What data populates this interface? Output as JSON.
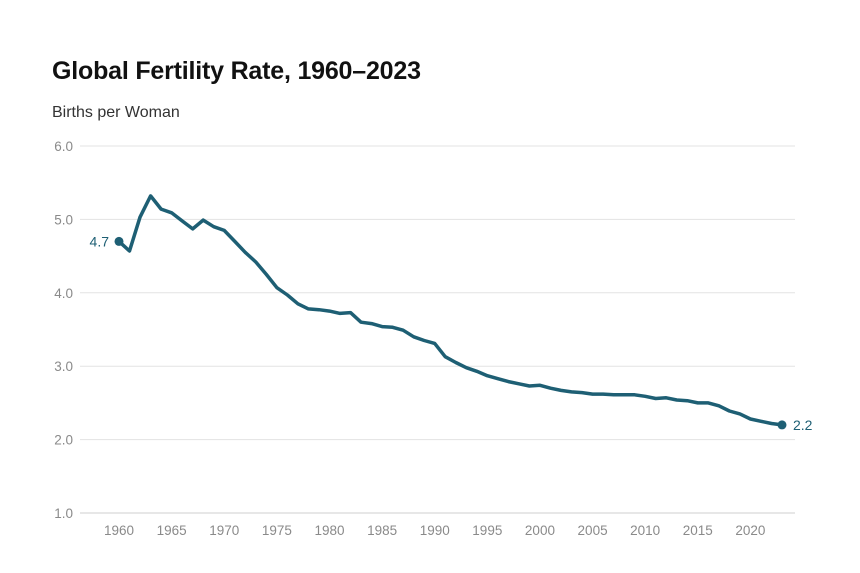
{
  "chart_data": {
    "type": "line",
    "title": "Global Fertility Rate, 1960–2023",
    "subtitle": "Births per Woman",
    "xlabel": "",
    "ylabel": "",
    "ylim": [
      1.0,
      6.0
    ],
    "xlim": [
      1960,
      2023
    ],
    "grid": true,
    "line_color": "#1e5f74",
    "yticks": [
      {
        "value": 1.0,
        "label": "1.0"
      },
      {
        "value": 2.0,
        "label": "2.0"
      },
      {
        "value": 3.0,
        "label": "3.0"
      },
      {
        "value": 4.0,
        "label": "4.0"
      },
      {
        "value": 5.0,
        "label": "5.0"
      },
      {
        "value": 6.0,
        "label": "6.0"
      }
    ],
    "xticks": [
      {
        "value": 1960,
        "label": "1960"
      },
      {
        "value": 1965,
        "label": "1965"
      },
      {
        "value": 1970,
        "label": "1970"
      },
      {
        "value": 1975,
        "label": "1975"
      },
      {
        "value": 1980,
        "label": "1980"
      },
      {
        "value": 1985,
        "label": "1985"
      },
      {
        "value": 1990,
        "label": "1990"
      },
      {
        "value": 1995,
        "label": "1995"
      },
      {
        "value": 2000,
        "label": "2000"
      },
      {
        "value": 2005,
        "label": "2005"
      },
      {
        "value": 2010,
        "label": "2010"
      },
      {
        "value": 2015,
        "label": "2015"
      },
      {
        "value": 2020,
        "label": "2020"
      }
    ],
    "series": [
      {
        "name": "Global Fertility Rate",
        "x": [
          1960,
          1961,
          1962,
          1963,
          1964,
          1965,
          1966,
          1967,
          1968,
          1969,
          1970,
          1971,
          1972,
          1973,
          1974,
          1975,
          1976,
          1977,
          1978,
          1979,
          1980,
          1981,
          1982,
          1983,
          1984,
          1985,
          1986,
          1987,
          1988,
          1989,
          1990,
          1991,
          1992,
          1993,
          1994,
          1995,
          1996,
          1997,
          1998,
          1999,
          2000,
          2001,
          2002,
          2003,
          2004,
          2005,
          2006,
          2007,
          2008,
          2009,
          2010,
          2011,
          2012,
          2013,
          2014,
          2015,
          2016,
          2017,
          2018,
          2019,
          2020,
          2021,
          2022,
          2023
        ],
        "values": [
          4.7,
          4.57,
          5.03,
          5.32,
          5.14,
          5.09,
          4.98,
          4.87,
          4.99,
          4.9,
          4.85,
          4.7,
          4.55,
          4.42,
          4.25,
          4.07,
          3.97,
          3.85,
          3.78,
          3.77,
          3.75,
          3.72,
          3.73,
          3.6,
          3.58,
          3.54,
          3.53,
          3.49,
          3.4,
          3.35,
          3.31,
          3.13,
          3.05,
          2.98,
          2.93,
          2.87,
          2.83,
          2.79,
          2.76,
          2.73,
          2.74,
          2.7,
          2.67,
          2.65,
          2.64,
          2.62,
          2.62,
          2.61,
          2.61,
          2.61,
          2.59,
          2.56,
          2.57,
          2.54,
          2.53,
          2.5,
          2.5,
          2.46,
          2.39,
          2.35,
          2.28,
          2.25,
          2.22,
          2.2
        ]
      }
    ],
    "annotations": [
      {
        "year": 1960,
        "value": 4.7,
        "label": "4.7",
        "side": "left"
      },
      {
        "year": 2023,
        "value": 2.2,
        "label": "2.2",
        "side": "right"
      }
    ]
  }
}
